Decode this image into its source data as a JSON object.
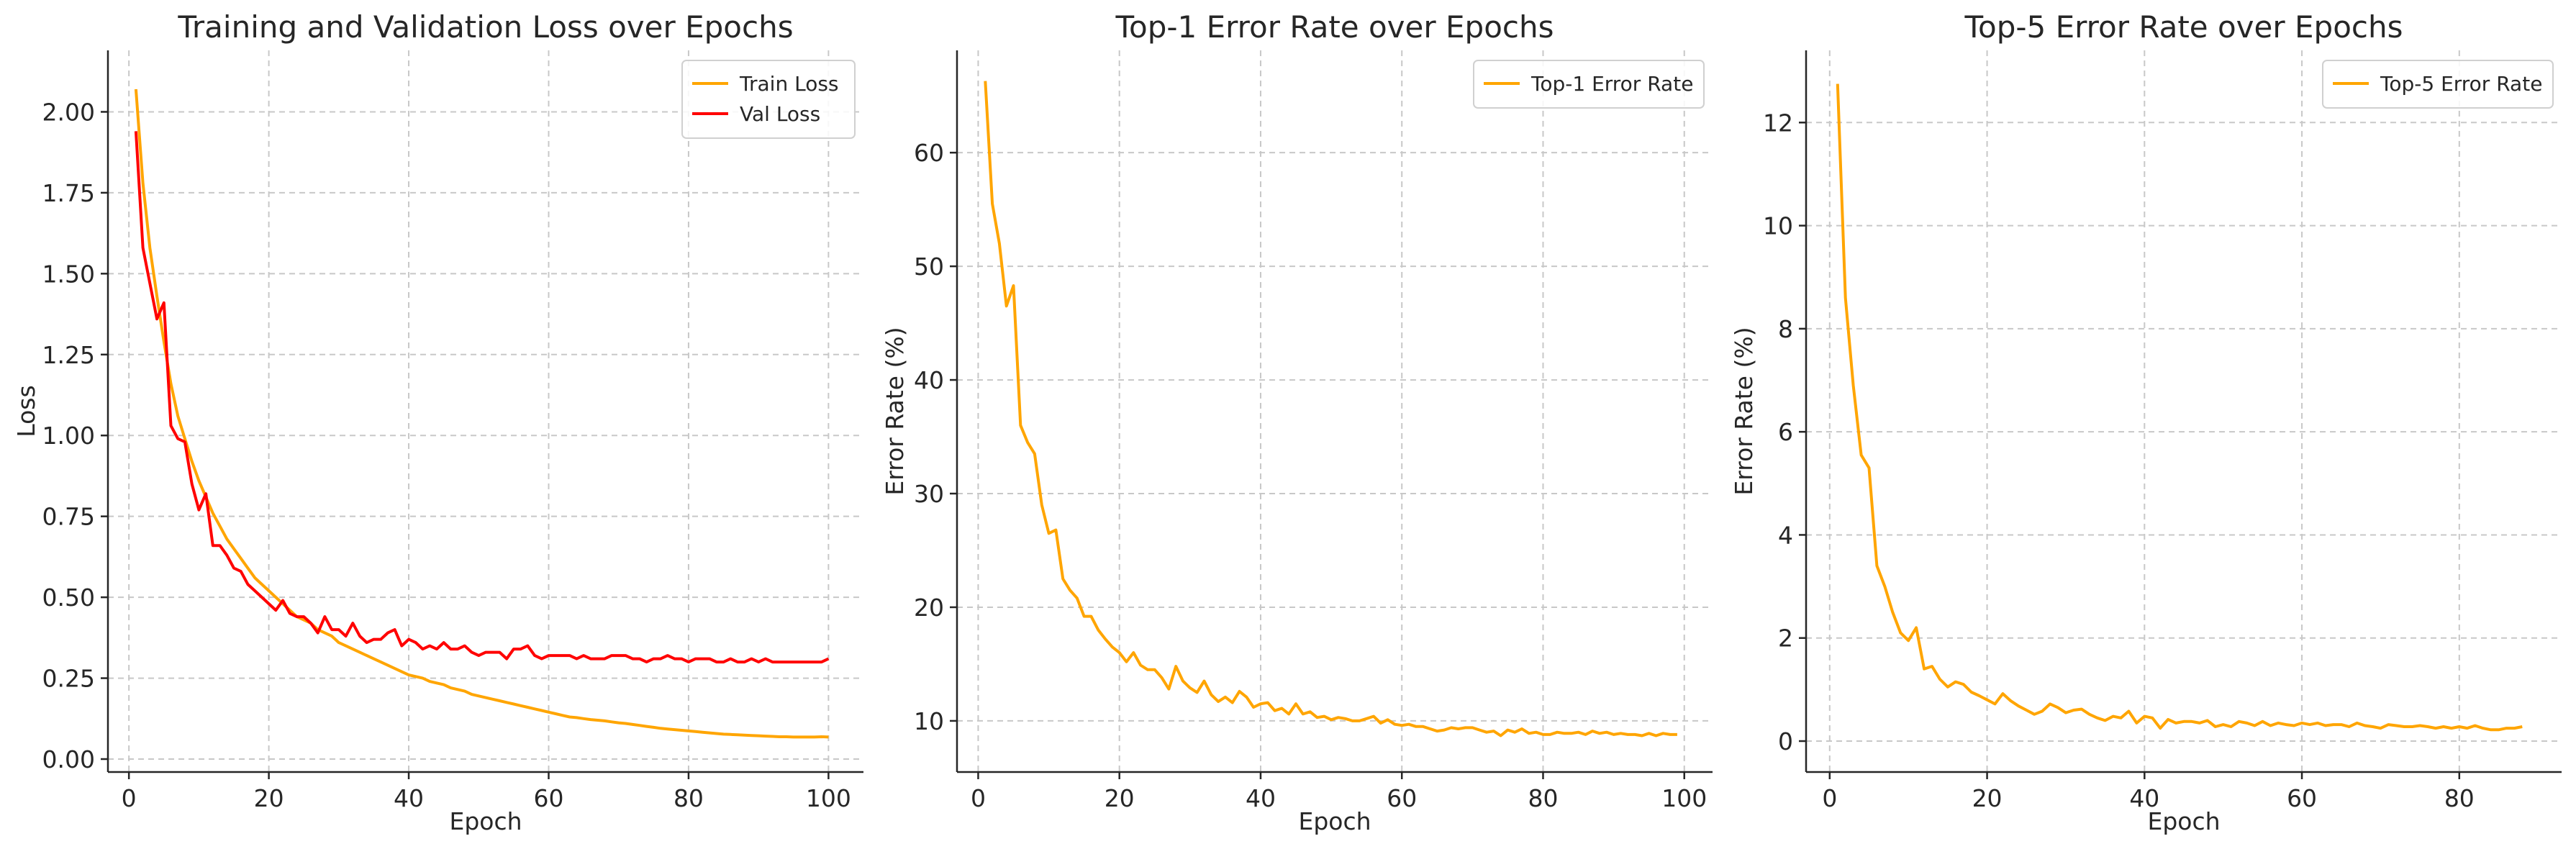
{
  "chart_data": [
    {
      "type": "line",
      "title": "Training and Validation Loss over Epochs",
      "xlabel": "Epoch",
      "ylabel": "Loss",
      "xlim": [
        -3,
        105
      ],
      "ylim": [
        -0.04,
        2.19
      ],
      "xticks": [
        0,
        20,
        40,
        60,
        80,
        100
      ],
      "yticks": [
        0.0,
        0.25,
        0.5,
        0.75,
        1.0,
        1.25,
        1.5,
        1.75,
        2.0
      ],
      "ytick_labels": [
        "0.00",
        "0.25",
        "0.50",
        "0.75",
        "1.00",
        "1.25",
        "1.50",
        "1.75",
        "2.00"
      ],
      "grid": true,
      "legend": "top-right",
      "series": [
        {
          "name": "Train Loss",
          "color": "#FFA500",
          "x": [
            1,
            2,
            3,
            4,
            5,
            6,
            7,
            8,
            9,
            10,
            11,
            12,
            13,
            14,
            15,
            16,
            17,
            18,
            19,
            20,
            21,
            22,
            23,
            24,
            25,
            26,
            27,
            28,
            29,
            30,
            31,
            32,
            33,
            34,
            35,
            36,
            37,
            38,
            39,
            40,
            41,
            42,
            43,
            44,
            45,
            46,
            47,
            48,
            49,
            50,
            51,
            52,
            53,
            54,
            55,
            56,
            57,
            58,
            59,
            60,
            61,
            62,
            63,
            64,
            65,
            66,
            67,
            68,
            69,
            70,
            71,
            72,
            73,
            74,
            75,
            76,
            77,
            78,
            79,
            80,
            81,
            82,
            83,
            84,
            85,
            86,
            87,
            88,
            89,
            90,
            91,
            92,
            93,
            94,
            95,
            96,
            97,
            98,
            99,
            100
          ],
          "y": [
            2.07,
            1.78,
            1.58,
            1.43,
            1.29,
            1.16,
            1.06,
            0.99,
            0.92,
            0.86,
            0.81,
            0.76,
            0.72,
            0.68,
            0.65,
            0.62,
            0.59,
            0.56,
            0.54,
            0.52,
            0.5,
            0.48,
            0.46,
            0.44,
            0.43,
            0.42,
            0.4,
            0.39,
            0.38,
            0.36,
            0.35,
            0.34,
            0.33,
            0.32,
            0.31,
            0.3,
            0.29,
            0.28,
            0.27,
            0.26,
            0.255,
            0.25,
            0.24,
            0.235,
            0.23,
            0.22,
            0.215,
            0.21,
            0.2,
            0.195,
            0.19,
            0.185,
            0.18,
            0.175,
            0.17,
            0.165,
            0.16,
            0.155,
            0.15,
            0.145,
            0.14,
            0.135,
            0.13,
            0.128,
            0.125,
            0.122,
            0.12,
            0.118,
            0.115,
            0.112,
            0.11,
            0.107,
            0.104,
            0.101,
            0.098,
            0.095,
            0.093,
            0.091,
            0.089,
            0.087,
            0.085,
            0.083,
            0.081,
            0.079,
            0.077,
            0.076,
            0.075,
            0.074,
            0.073,
            0.072,
            0.071,
            0.07,
            0.069,
            0.069,
            0.068,
            0.068,
            0.068,
            0.068,
            0.069,
            0.068
          ]
        },
        {
          "name": "Val Loss",
          "color": "#FF0000",
          "x": [
            1,
            2,
            3,
            4,
            5,
            6,
            7,
            8,
            9,
            10,
            11,
            12,
            13,
            14,
            15,
            16,
            17,
            18,
            19,
            20,
            21,
            22,
            23,
            24,
            25,
            26,
            27,
            28,
            29,
            30,
            31,
            32,
            33,
            34,
            35,
            36,
            37,
            38,
            39,
            40,
            41,
            42,
            43,
            44,
            45,
            46,
            47,
            48,
            49,
            50,
            51,
            52,
            53,
            54,
            55,
            56,
            57,
            58,
            59,
            60,
            61,
            62,
            63,
            64,
            65,
            66,
            67,
            68,
            69,
            70,
            71,
            72,
            73,
            74,
            75,
            76,
            77,
            78,
            79,
            80,
            81,
            82,
            83,
            84,
            85,
            86,
            87,
            88,
            89,
            90,
            91,
            92,
            93,
            94,
            95,
            96,
            97,
            98,
            99,
            100
          ],
          "y": [
            1.94,
            1.58,
            1.47,
            1.36,
            1.41,
            1.03,
            0.99,
            0.98,
            0.85,
            0.77,
            0.82,
            0.66,
            0.66,
            0.63,
            0.59,
            0.58,
            0.54,
            0.52,
            0.5,
            0.48,
            0.46,
            0.49,
            0.45,
            0.44,
            0.44,
            0.42,
            0.39,
            0.44,
            0.4,
            0.4,
            0.38,
            0.42,
            0.38,
            0.36,
            0.37,
            0.37,
            0.39,
            0.4,
            0.35,
            0.37,
            0.36,
            0.34,
            0.35,
            0.34,
            0.36,
            0.34,
            0.34,
            0.35,
            0.33,
            0.32,
            0.33,
            0.33,
            0.33,
            0.31,
            0.34,
            0.34,
            0.35,
            0.32,
            0.31,
            0.32,
            0.32,
            0.32,
            0.32,
            0.31,
            0.32,
            0.31,
            0.31,
            0.31,
            0.32,
            0.32,
            0.32,
            0.31,
            0.31,
            0.3,
            0.31,
            0.31,
            0.32,
            0.31,
            0.31,
            0.3,
            0.31,
            0.31,
            0.31,
            0.3,
            0.3,
            0.31,
            0.3,
            0.3,
            0.31,
            0.3,
            0.31,
            0.3,
            0.3,
            0.3,
            0.3,
            0.3,
            0.3,
            0.3,
            0.3,
            0.31
          ]
        }
      ]
    },
    {
      "type": "line",
      "title": "Top-1 Error Rate over Epochs",
      "xlabel": "Epoch",
      "ylabel": "Error Rate (%)",
      "xlim": [
        -3,
        104
      ],
      "ylim": [
        5.5,
        69
      ],
      "xticks": [
        0,
        20,
        40,
        60,
        80,
        100
      ],
      "yticks": [
        10,
        20,
        30,
        40,
        50,
        60
      ],
      "ytick_labels": [
        "10",
        "20",
        "30",
        "40",
        "50",
        "60"
      ],
      "grid": true,
      "legend": "top-right",
      "series": [
        {
          "name": "Top-1 Error Rate",
          "color": "#FFA500",
          "x": [
            1,
            2,
            3,
            4,
            5,
            6,
            7,
            8,
            9,
            10,
            11,
            12,
            13,
            14,
            15,
            16,
            17,
            18,
            19,
            20,
            21,
            22,
            23,
            24,
            25,
            26,
            27,
            28,
            29,
            30,
            31,
            32,
            33,
            34,
            35,
            36,
            37,
            38,
            39,
            40,
            41,
            42,
            43,
            44,
            45,
            46,
            47,
            48,
            49,
            50,
            51,
            52,
            53,
            54,
            55,
            56,
            57,
            58,
            59,
            60,
            61,
            62,
            63,
            64,
            65,
            66,
            67,
            68,
            69,
            70,
            71,
            72,
            73,
            74,
            75,
            76,
            77,
            78,
            79,
            80,
            81,
            82,
            83,
            84,
            85,
            86,
            87,
            88,
            89,
            90,
            91,
            92,
            93,
            94,
            95,
            96,
            97,
            98,
            99
          ],
          "y": [
            66.3,
            55.5,
            52.0,
            46.5,
            48.3,
            36.0,
            34.5,
            33.5,
            29.0,
            26.5,
            26.8,
            22.5,
            21.5,
            20.8,
            19.2,
            19.2,
            18.0,
            17.2,
            16.5,
            16.0,
            15.2,
            16.0,
            14.9,
            14.5,
            14.5,
            13.8,
            12.8,
            14.8,
            13.5,
            12.9,
            12.5,
            13.5,
            12.3,
            11.7,
            12.1,
            11.6,
            12.6,
            12.1,
            11.2,
            11.5,
            11.6,
            10.9,
            11.1,
            10.6,
            11.5,
            10.6,
            10.8,
            10.3,
            10.4,
            10.1,
            10.3,
            10.2,
            10.0,
            10.0,
            10.2,
            10.4,
            9.8,
            10.1,
            9.7,
            9.6,
            9.7,
            9.5,
            9.5,
            9.3,
            9.1,
            9.2,
            9.4,
            9.3,
            9.4,
            9.4,
            9.2,
            9.0,
            9.1,
            8.7,
            9.2,
            9.0,
            9.3,
            8.9,
            9.0,
            8.8,
            8.8,
            9.0,
            8.9,
            8.9,
            9.0,
            8.8,
            9.1,
            8.9,
            9.0,
            8.8,
            8.9,
            8.8,
            8.8,
            8.7,
            8.9,
            8.7,
            8.9,
            8.8,
            8.8
          ]
        }
      ]
    },
    {
      "type": "line",
      "title": "Top-5 Error Rate over Epochs",
      "xlabel": "Epoch",
      "ylabel": "Error Rate (%)",
      "xlim": [
        -3,
        93
      ],
      "ylim": [
        -0.6,
        13.4
      ],
      "xticks": [
        0,
        20,
        40,
        60,
        80
      ],
      "yticks": [
        0,
        2,
        4,
        6,
        8,
        10,
        12
      ],
      "ytick_labels": [
        "0",
        "2",
        "4",
        "6",
        "8",
        "10",
        "12"
      ],
      "grid": true,
      "legend": "top-right",
      "series": [
        {
          "name": "Top-5 Error Rate",
          "color": "#FFA500",
          "x": [
            1,
            2,
            3,
            4,
            5,
            6,
            7,
            8,
            9,
            10,
            11,
            12,
            13,
            14,
            15,
            16,
            17,
            18,
            19,
            20,
            21,
            22,
            23,
            24,
            25,
            26,
            27,
            28,
            29,
            30,
            31,
            32,
            33,
            34,
            35,
            36,
            37,
            38,
            39,
            40,
            41,
            42,
            43,
            44,
            45,
            46,
            47,
            48,
            49,
            50,
            51,
            52,
            53,
            54,
            55,
            56,
            57,
            58,
            59,
            60,
            61,
            62,
            63,
            64,
            65,
            66,
            67,
            68,
            69,
            70,
            71,
            72,
            73,
            74,
            75,
            76,
            77,
            78,
            79,
            80,
            81,
            82,
            83,
            84,
            85,
            86,
            87,
            88
          ],
          "y": [
            12.75,
            8.6,
            6.9,
            5.55,
            5.3,
            3.4,
            3.0,
            2.5,
            2.1,
            1.95,
            2.2,
            1.4,
            1.45,
            1.2,
            1.05,
            1.15,
            1.1,
            0.95,
            0.88,
            0.8,
            0.72,
            0.92,
            0.78,
            0.68,
            0.6,
            0.52,
            0.58,
            0.72,
            0.65,
            0.55,
            0.6,
            0.62,
            0.52,
            0.45,
            0.4,
            0.48,
            0.45,
            0.58,
            0.35,
            0.48,
            0.45,
            0.25,
            0.42,
            0.35,
            0.38,
            0.38,
            0.35,
            0.4,
            0.28,
            0.32,
            0.28,
            0.38,
            0.35,
            0.3,
            0.38,
            0.3,
            0.35,
            0.32,
            0.3,
            0.35,
            0.32,
            0.35,
            0.3,
            0.32,
            0.32,
            0.28,
            0.35,
            0.3,
            0.28,
            0.25,
            0.32,
            0.3,
            0.28,
            0.28,
            0.3,
            0.28,
            0.25,
            0.28,
            0.25,
            0.28,
            0.25,
            0.3,
            0.25,
            0.22,
            0.22,
            0.25,
            0.25,
            0.28
          ]
        }
      ]
    }
  ]
}
